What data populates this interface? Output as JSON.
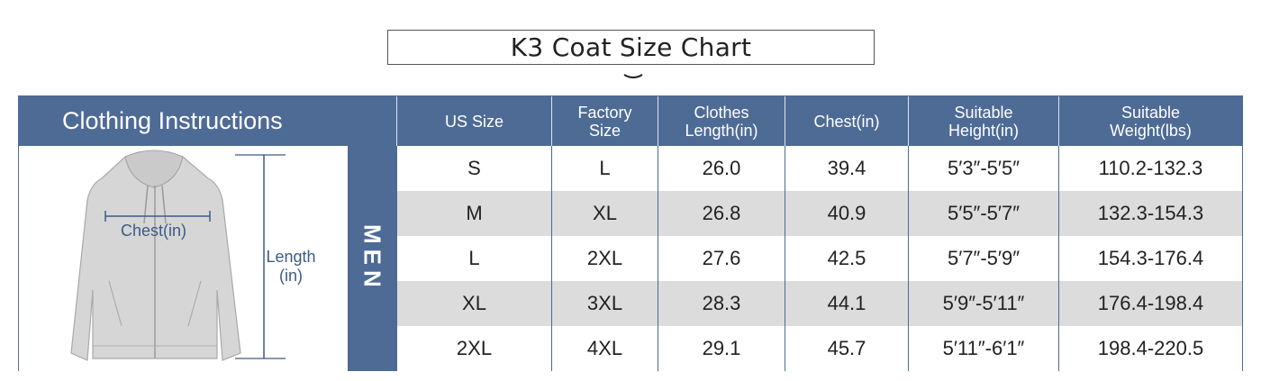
{
  "title": "K3 Coat Size Chart",
  "section_header": "Clothing Instructions",
  "gender_label": "MEN",
  "measure_labels": {
    "chest": "Chest(in)",
    "length_line1": "Length",
    "length_line2": "(in)"
  },
  "columns": [
    "US Size",
    "Factory\nSize",
    "Clothes\nLength(in)",
    "Chest(in)",
    "Suitable\nHeight(in)",
    "Suitable\nWeight(lbs)"
  ],
  "rows": [
    [
      "S",
      "L",
      "26.0",
      "39.4",
      "5′3″-5′5″",
      "110.2-132.3"
    ],
    [
      "M",
      "XL",
      "26.8",
      "40.9",
      "5′5″-5′7″",
      "132.3-154.3"
    ],
    [
      "L",
      "2XL",
      "27.6",
      "42.5",
      "5′7″-5′9″",
      "154.3-176.4"
    ],
    [
      "XL",
      "3XL",
      "28.3",
      "44.1",
      "5′9″-5′11″",
      "176.4-198.4"
    ],
    [
      "2XL",
      "4XL",
      "29.1",
      "45.7",
      "5′11″-6′1″",
      "198.4-220.5"
    ]
  ],
  "colors": {
    "header_blue": "#4e6b96",
    "row_gray": "#dcdcdc",
    "measure_blue": "#3e5a87",
    "garment_gray": "#d6d6d6"
  }
}
